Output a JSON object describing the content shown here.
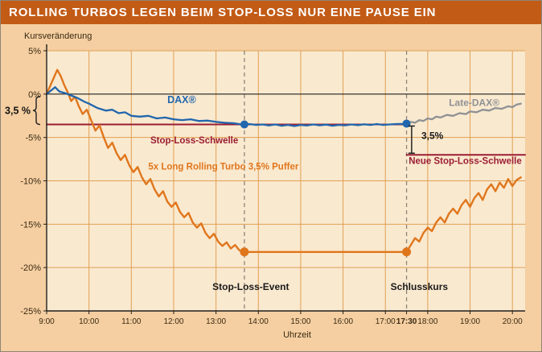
{
  "header": {
    "title": "ROLLING TURBOS LEGEN BEIM STOP-LOSS NUR EINE PAUSE EIN"
  },
  "chart_data": {
    "type": "line",
    "title": "Rolling Turbos legen beim Stop-Loss nur eine Pause ein",
    "ylabel": "Kursveränderung",
    "xlabel": "Uhrzeit",
    "xlim": [
      9,
      20.3
    ],
    "ylim": [
      -25,
      5
    ],
    "grid": true,
    "legend_position": "inline-annotations",
    "colors": {
      "plot_bg": "#f9e9cf",
      "outer_bg": "#f5cfa1",
      "grid": "#e0a055",
      "axis": "#1f1f1f",
      "dashed": "#8d8579",
      "text": "#3a2a14",
      "header_bg": "#c25b16",
      "dax_blue": "#2166ad",
      "late_dax_gray": "#8f9194",
      "turbo_orange": "#e0761c",
      "stoploss_red": "#9b1d33"
    },
    "yticks": [
      {
        "v": 5,
        "label": "5%",
        "grid": true
      },
      {
        "v": 0,
        "label": "0%",
        "zero": true
      },
      {
        "v": -5,
        "label": "-5%",
        "grid": true
      },
      {
        "v": -10,
        "label": "-10%",
        "grid": true
      },
      {
        "v": -15,
        "label": "-15%",
        "grid": true
      },
      {
        "v": -20,
        "label": "-20%",
        "grid": true
      },
      {
        "v": -25,
        "label": "-25%"
      }
    ],
    "xticks": [
      {
        "v": 9,
        "label": "9:00"
      },
      {
        "v": 10,
        "label": "10:00",
        "grid": true
      },
      {
        "v": 11,
        "label": "11:00",
        "grid": true
      },
      {
        "v": 12,
        "label": "12:00",
        "grid": true
      },
      {
        "v": 13,
        "label": "13:00",
        "grid": true
      },
      {
        "v": 14,
        "label": "14:00",
        "grid": true
      },
      {
        "v": 15,
        "label": "15:00",
        "grid": true
      },
      {
        "v": 16,
        "label": "16:00",
        "grid": true
      },
      {
        "v": 17,
        "label": "17:00",
        "grid": true
      },
      {
        "v": 17.5,
        "label": "17:30",
        "bold": true
      },
      {
        "v": 18,
        "label": "18:00",
        "grid": true
      },
      {
        "v": 19,
        "label": "19:00",
        "grid": true
      },
      {
        "v": 20,
        "label": "20:00",
        "grid": true
      }
    ],
    "events": [
      {
        "x": 13.67,
        "name": "stop-loss-event-line"
      },
      {
        "x": 17.5,
        "name": "schlusskurs-line"
      }
    ],
    "series": [
      {
        "name": "Stop-Loss-Schwelle",
        "color": "#9b1d33",
        "width": 2,
        "points": [
          [
            9,
            -3.5
          ],
          [
            17.55,
            -3.5
          ]
        ]
      },
      {
        "name": "Neue Stop-Loss-Schwelle",
        "color": "#9b1d33",
        "width": 2,
        "points": [
          [
            17.5,
            -7
          ],
          [
            20.3,
            -7
          ]
        ]
      },
      {
        "name": "5x Long Rolling Turbo 3,5% Puffer",
        "color": "#e0761c",
        "width": 2.4,
        "points": [
          [
            9,
            0
          ],
          [
            9.08,
            0.9
          ],
          [
            9.17,
            1.9
          ],
          [
            9.25,
            2.8
          ],
          [
            9.33,
            2.1
          ],
          [
            9.42,
            1
          ],
          [
            9.5,
            0.2
          ],
          [
            9.58,
            -0.8
          ],
          [
            9.67,
            -0.3
          ],
          [
            9.75,
            -1.3
          ],
          [
            9.85,
            -2.3
          ],
          [
            9.95,
            -1.8
          ],
          [
            10.05,
            -3
          ],
          [
            10.15,
            -4.2
          ],
          [
            10.25,
            -3.6
          ],
          [
            10.35,
            -5
          ],
          [
            10.45,
            -6.2
          ],
          [
            10.55,
            -5.6
          ],
          [
            10.65,
            -6.8
          ],
          [
            10.75,
            -7.6
          ],
          [
            10.85,
            -7
          ],
          [
            10.95,
            -8.2
          ],
          [
            11.05,
            -9
          ],
          [
            11.15,
            -8.4
          ],
          [
            11.25,
            -9.6
          ],
          [
            11.35,
            -10.4
          ],
          [
            11.45,
            -9.8
          ],
          [
            11.55,
            -11
          ],
          [
            11.65,
            -11.8
          ],
          [
            11.75,
            -11.2
          ],
          [
            11.85,
            -12.4
          ],
          [
            11.95,
            -13
          ],
          [
            12.05,
            -12.5
          ],
          [
            12.15,
            -13.6
          ],
          [
            12.25,
            -14.2
          ],
          [
            12.35,
            -13.7
          ],
          [
            12.45,
            -14.8
          ],
          [
            12.55,
            -15.4
          ],
          [
            12.65,
            -14.9
          ],
          [
            12.75,
            -16
          ],
          [
            12.85,
            -16.6
          ],
          [
            12.95,
            -16.1
          ],
          [
            13.05,
            -17
          ],
          [
            13.15,
            -17.5
          ],
          [
            13.25,
            -17.1
          ],
          [
            13.35,
            -17.8
          ],
          [
            13.45,
            -17.4
          ],
          [
            13.55,
            -18
          ],
          [
            13.67,
            -18.2
          ],
          [
            17.5,
            -18.2
          ],
          [
            17.6,
            -17.4
          ],
          [
            17.7,
            -16.6
          ],
          [
            17.8,
            -17
          ],
          [
            17.9,
            -16
          ],
          [
            18,
            -15.4
          ],
          [
            18.1,
            -15.8
          ],
          [
            18.2,
            -14.8
          ],
          [
            18.3,
            -14.2
          ],
          [
            18.4,
            -14.8
          ],
          [
            18.5,
            -13.8
          ],
          [
            18.6,
            -13.2
          ],
          [
            18.7,
            -13.8
          ],
          [
            18.8,
            -12.8
          ],
          [
            18.9,
            -12.2
          ],
          [
            19,
            -13
          ],
          [
            19.1,
            -12
          ],
          [
            19.2,
            -11.4
          ],
          [
            19.3,
            -12.2
          ],
          [
            19.4,
            -11
          ],
          [
            19.5,
            -10.4
          ],
          [
            19.6,
            -11.2
          ],
          [
            19.7,
            -10.2
          ],
          [
            19.8,
            -10.8
          ],
          [
            19.9,
            -9.8
          ],
          [
            20,
            -10.6
          ],
          [
            20.1,
            -9.9
          ],
          [
            20.2,
            -9.6
          ]
        ]
      },
      {
        "name": "DAX®",
        "color": "#2166ad",
        "width": 2.3,
        "points": [
          [
            9,
            0
          ],
          [
            9.1,
            0.4
          ],
          [
            9.2,
            0.8
          ],
          [
            9.3,
            0.3
          ],
          [
            9.45,
            0.1
          ],
          [
            9.6,
            -0.2
          ],
          [
            9.75,
            -0.5
          ],
          [
            9.9,
            -0.9
          ],
          [
            10,
            -1.1
          ],
          [
            10.2,
            -1.6
          ],
          [
            10.4,
            -1.9
          ],
          [
            10.55,
            -1.8
          ],
          [
            10.7,
            -2.2
          ],
          [
            10.85,
            -2.1
          ],
          [
            11,
            -2.5
          ],
          [
            11.2,
            -2.6
          ],
          [
            11.4,
            -2.5
          ],
          [
            11.6,
            -2.8
          ],
          [
            11.8,
            -2.7
          ],
          [
            12,
            -2.9
          ],
          [
            12.2,
            -3
          ],
          [
            12.4,
            -2.9
          ],
          [
            12.6,
            -3.1
          ],
          [
            12.8,
            -3.05
          ],
          [
            13,
            -3.2
          ],
          [
            13.2,
            -3.3
          ],
          [
            13.4,
            -3.35
          ],
          [
            13.55,
            -3.45
          ],
          [
            13.67,
            -3.5
          ],
          [
            13.8,
            -3.45
          ],
          [
            13.95,
            -3.55
          ],
          [
            14.1,
            -3.5
          ],
          [
            14.25,
            -3.62
          ],
          [
            14.4,
            -3.5
          ],
          [
            14.55,
            -3.65
          ],
          [
            14.7,
            -3.55
          ],
          [
            14.85,
            -3.68
          ],
          [
            15,
            -3.55
          ],
          [
            15.15,
            -3.62
          ],
          [
            15.3,
            -3.5
          ],
          [
            15.45,
            -3.6
          ],
          [
            15.6,
            -3.52
          ],
          [
            15.75,
            -3.65
          ],
          [
            15.9,
            -3.55
          ],
          [
            16.05,
            -3.6
          ],
          [
            16.2,
            -3.5
          ],
          [
            16.35,
            -3.58
          ],
          [
            16.5,
            -3.48
          ],
          [
            16.65,
            -3.55
          ],
          [
            16.8,
            -3.45
          ],
          [
            16.95,
            -3.55
          ],
          [
            17.1,
            -3.5
          ],
          [
            17.25,
            -3.45
          ],
          [
            17.4,
            -3.43
          ],
          [
            17.5,
            -3.4
          ]
        ]
      },
      {
        "name": "Late-DAX®",
        "color": "#8f9194",
        "width": 2.3,
        "points": [
          [
            17.5,
            -3.4
          ],
          [
            17.6,
            -3.2
          ],
          [
            17.7,
            -3.3
          ],
          [
            17.8,
            -3
          ],
          [
            17.9,
            -3.1
          ],
          [
            18,
            -2.8
          ],
          [
            18.1,
            -2.9
          ],
          [
            18.2,
            -2.6
          ],
          [
            18.3,
            -2.7
          ],
          [
            18.45,
            -2.4
          ],
          [
            18.6,
            -2.5
          ],
          [
            18.75,
            -2.2
          ],
          [
            18.9,
            -2.3
          ],
          [
            19,
            -2
          ],
          [
            19.15,
            -2.1
          ],
          [
            19.3,
            -1.8
          ],
          [
            19.45,
            -1.9
          ],
          [
            19.6,
            -1.6
          ],
          [
            19.75,
            -1.7
          ],
          [
            19.9,
            -1.4
          ],
          [
            20,
            -1.5
          ],
          [
            20.1,
            -1.2
          ],
          [
            20.2,
            -1.1
          ]
        ]
      }
    ],
    "markers": [
      {
        "x": 13.67,
        "y": -3.5,
        "r": 5,
        "color": "#2166ad"
      },
      {
        "x": 17.5,
        "y": -3.4,
        "r": 5,
        "color": "#2166ad"
      },
      {
        "x": 13.67,
        "y": -18.2,
        "r": 5.5,
        "color": "#e0761c"
      },
      {
        "x": 17.5,
        "y": -18.2,
        "r": 5.5,
        "color": "#e0761c"
      }
    ],
    "left_brace": {
      "from": 0,
      "to": -3.5,
      "label": "3,5 %"
    },
    "right_bracket": {
      "x": 17.62,
      "from": -3.4,
      "to": -7,
      "label": "3,5%"
    },
    "annotations": [
      {
        "text": "DAX®",
        "x": 11.85,
        "y": -1.05,
        "color": "#2166ad",
        "bold": true,
        "size": 12.5,
        "anchor": "start"
      },
      {
        "text": "Late-DAX®",
        "x": 18.5,
        "y": -1.35,
        "color": "#8f9194",
        "bold": true,
        "size": 12,
        "anchor": "start"
      },
      {
        "text": "Stop-Loss-Schwelle",
        "x": 11.45,
        "y": -5.7,
        "color": "#9b1d33",
        "bold": true,
        "size": 11.5,
        "anchor": "start"
      },
      {
        "text": "Neue Stop-Loss-Schwelle",
        "x": 17.55,
        "y": -8.05,
        "color": "#9b1d33",
        "bold": true,
        "size": 11.5,
        "anchor": "start"
      },
      {
        "text": "5x Long Rolling Turbo 3,5% Puffer",
        "x": 11.4,
        "y": -8.7,
        "color": "#e0761c",
        "bold": true,
        "size": 11.5,
        "anchor": "start"
      },
      {
        "text": "3,5%",
        "x": 17.85,
        "y": -5.15,
        "color": "#1a1a1a",
        "bold": true,
        "size": 12,
        "anchor": "start"
      },
      {
        "text": "Stop-Loss-Event",
        "x": 13.82,
        "y": -22.6,
        "color": "#1a1a1a",
        "bold": true,
        "size": 12,
        "anchor": "middle"
      },
      {
        "text": "Schlusskurs",
        "x": 17.8,
        "y": -22.6,
        "color": "#1a1a1a",
        "bold": true,
        "size": 12,
        "anchor": "middle"
      }
    ]
  }
}
